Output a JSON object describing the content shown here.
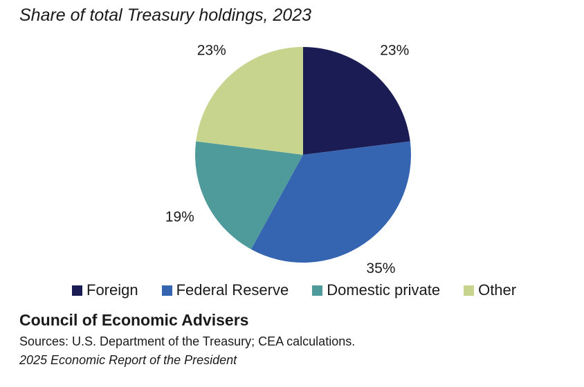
{
  "chart_data": {
    "type": "pie",
    "title": "Share of total Treasury holdings, 2023",
    "categories": [
      "Foreign",
      "Federal Reserve",
      "Domestic private",
      "Other"
    ],
    "values": [
      23,
      35,
      19,
      23
    ],
    "labels": [
      "23%",
      "35%",
      "19%",
      "23%"
    ],
    "colors": [
      "#1c1c54",
      "#3565b0",
      "#4f9a9a",
      "#c6d48e"
    ],
    "legend_position": "bottom",
    "start": "top",
    "direction": "clockwise"
  },
  "footer": {
    "publisher": "Council of Economic Advisers",
    "sources": "Sources: U.S. Department of the Treasury; CEA calculations.",
    "report": "2025 Economic Report of the President"
  }
}
